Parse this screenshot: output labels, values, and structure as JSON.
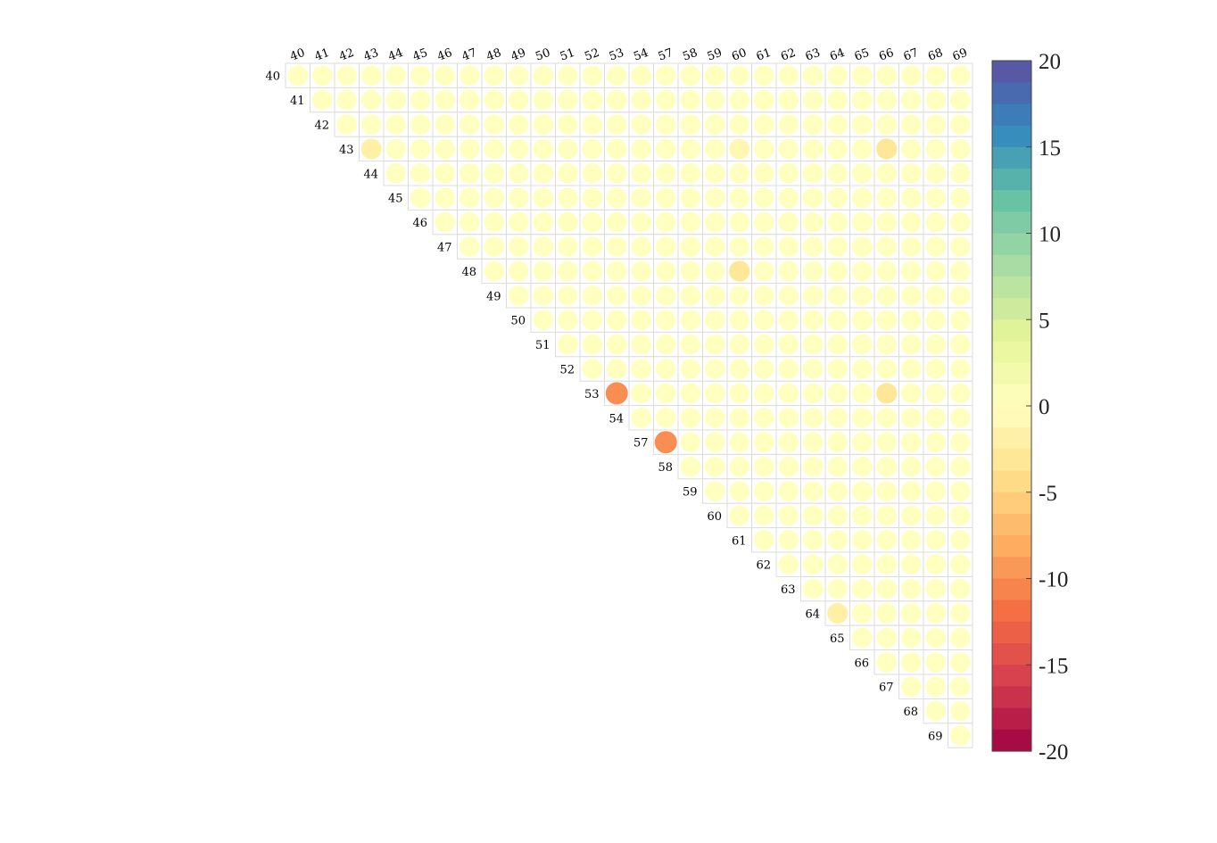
{
  "chart_data": {
    "type": "heatmap",
    "title": "",
    "xlabel": "",
    "ylabel": "",
    "labels": [
      "40",
      "41",
      "42",
      "43",
      "44",
      "45",
      "46",
      "47",
      "48",
      "49",
      "50",
      "51",
      "52",
      "53",
      "54",
      "57",
      "58",
      "59",
      "60",
      "61",
      "62",
      "63",
      "64",
      "65",
      "66",
      "67",
      "68",
      "69"
    ],
    "triangle": "upper",
    "default_value": 0,
    "highlights": [
      {
        "row": "43",
        "col": "43",
        "value": -2
      },
      {
        "row": "43",
        "col": "60",
        "value": -1
      },
      {
        "row": "43",
        "col": "66",
        "value": -3
      },
      {
        "row": "48",
        "col": "60",
        "value": -3
      },
      {
        "row": "53",
        "col": "53",
        "value": -10
      },
      {
        "row": "53",
        "col": "66",
        "value": -3
      },
      {
        "row": "57",
        "col": "57",
        "value": -10
      },
      {
        "row": "64",
        "col": "64",
        "value": -2
      }
    ],
    "colorbar": {
      "range": [
        -20,
        20
      ],
      "ticks": [
        "20",
        "15",
        "10",
        "5",
        "0",
        "-5",
        "-10",
        "-15",
        "-20"
      ],
      "palette": "Spectral"
    }
  }
}
